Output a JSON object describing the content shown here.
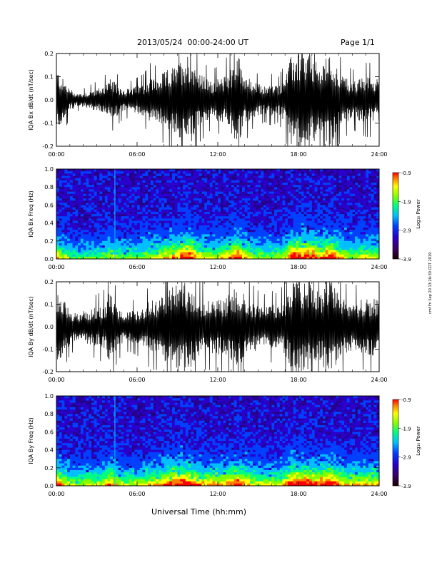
{
  "header": {
    "date_range": "2013/05/24  00:00-24:00 UT",
    "page": "Page 1/1"
  },
  "x_axis_title": "Universal Time (hh:mm)",
  "side_note": "cmf Fri Sep 20 13:26:30 CDT 2019",
  "colors": {
    "trace": "#000000",
    "colormap": [
      "#1a0000",
      "#3a0066",
      "#2a00cc",
      "#0040ff",
      "#00c0ff",
      "#00ff80",
      "#80ff00",
      "#ffff00",
      "#ff8000",
      "#ff0000"
    ]
  },
  "chart_data": [
    {
      "type": "line",
      "ylabel": "IQA Bx dB/dt (nT/sec)",
      "xlim": [
        0,
        24
      ],
      "ylim": [
        -0.2,
        0.2
      ],
      "xticks": [
        "00:00",
        "06:00",
        "12:00",
        "18:00",
        "24:00"
      ],
      "yticks": [
        "0.2",
        "0.1",
        "0.0",
        "-0.1",
        "-0.2"
      ],
      "envelope": {
        "hours": [
          0,
          0.5,
          1,
          1.5,
          2,
          2.5,
          3,
          3.5,
          4,
          4.5,
          5,
          5.5,
          6,
          6.5,
          7,
          7.5,
          8,
          8.5,
          9,
          9.5,
          10,
          10.5,
          11,
          11.5,
          12,
          12.5,
          13,
          13.5,
          14,
          14.5,
          15,
          15.5,
          16,
          16.5,
          17,
          17.5,
          18,
          18.5,
          19,
          19.5,
          20,
          20.5,
          21,
          21.5,
          22,
          22.5,
          23,
          23.5,
          24
        ],
        "amplitude": [
          0.14,
          0.09,
          0.05,
          0.03,
          0.03,
          0.04,
          0.05,
          0.06,
          0.09,
          0.07,
          0.05,
          0.05,
          0.06,
          0.07,
          0.1,
          0.09,
          0.12,
          0.14,
          0.15,
          0.2,
          0.2,
          0.12,
          0.1,
          0.08,
          0.09,
          0.1,
          0.15,
          0.2,
          0.12,
          0.08,
          0.07,
          0.06,
          0.07,
          0.06,
          0.1,
          0.2,
          0.2,
          0.2,
          0.2,
          0.14,
          0.18,
          0.2,
          0.12,
          0.1,
          0.08,
          0.09,
          0.1,
          0.1,
          0.09
        ]
      }
    },
    {
      "type": "heatmap",
      "ylabel": "IQA Bx Freq (Hz)",
      "colorbar_label": "Log₁₀ Power",
      "xlim": [
        0,
        24
      ],
      "ylim": [
        0,
        1.0
      ],
      "xticks": [
        "00:00",
        "06:00",
        "12:00",
        "18:00",
        "24:00"
      ],
      "yticks": [
        "1.0",
        "0.8",
        "0.6",
        "0.4",
        "0.2",
        "0.0"
      ],
      "colorbar_ticks": [
        "-0.9",
        "-1.9",
        "-2.9",
        "-3.9"
      ],
      "colorbar_range": [
        -3.9,
        -0.9
      ]
    },
    {
      "type": "line",
      "ylabel": "IQA By dB/dt (nT/sec)",
      "xlim": [
        0,
        24
      ],
      "ylim": [
        -0.2,
        0.2
      ],
      "xticks": [
        "00:00",
        "06:00",
        "12:00",
        "18:00",
        "24:00"
      ],
      "yticks": [
        "0.2",
        "0.1",
        "0.0",
        "-0.1",
        "-0.2"
      ],
      "envelope": {
        "hours": [
          0,
          0.5,
          1,
          1.5,
          2,
          2.5,
          3,
          3.5,
          4,
          4.5,
          5,
          5.5,
          6,
          6.5,
          7,
          7.5,
          8,
          8.5,
          9,
          9.5,
          10,
          10.5,
          11,
          11.5,
          12,
          12.5,
          13,
          13.5,
          14,
          14.5,
          15,
          15.5,
          16,
          16.5,
          17,
          17.5,
          18,
          18.5,
          19,
          19.5,
          20,
          20.5,
          21,
          21.5,
          22,
          22.5,
          23,
          23.5,
          24
        ],
        "amplitude": [
          0.18,
          0.12,
          0.08,
          0.06,
          0.07,
          0.08,
          0.09,
          0.1,
          0.16,
          0.1,
          0.07,
          0.07,
          0.08,
          0.09,
          0.12,
          0.12,
          0.15,
          0.18,
          0.2,
          0.2,
          0.18,
          0.14,
          0.12,
          0.12,
          0.13,
          0.12,
          0.16,
          0.2,
          0.14,
          0.12,
          0.1,
          0.09,
          0.1,
          0.09,
          0.13,
          0.2,
          0.2,
          0.2,
          0.2,
          0.16,
          0.2,
          0.2,
          0.15,
          0.12,
          0.11,
          0.12,
          0.12,
          0.13,
          0.12
        ]
      }
    },
    {
      "type": "heatmap",
      "ylabel": "IQA By Freq (Hz)",
      "colorbar_label": "Log₁₀ Power",
      "xlim": [
        0,
        24
      ],
      "ylim": [
        0,
        1.0
      ],
      "xticks": [
        "00:00",
        "06:00",
        "12:00",
        "18:00",
        "24:00"
      ],
      "yticks": [
        "1.0",
        "0.8",
        "0.6",
        "0.4",
        "0.2",
        "0.0"
      ],
      "colorbar_ticks": [
        "-0.9",
        "-1.9",
        "-2.9",
        "-3.9"
      ],
      "colorbar_range": [
        -3.9,
        -0.9
      ]
    }
  ]
}
